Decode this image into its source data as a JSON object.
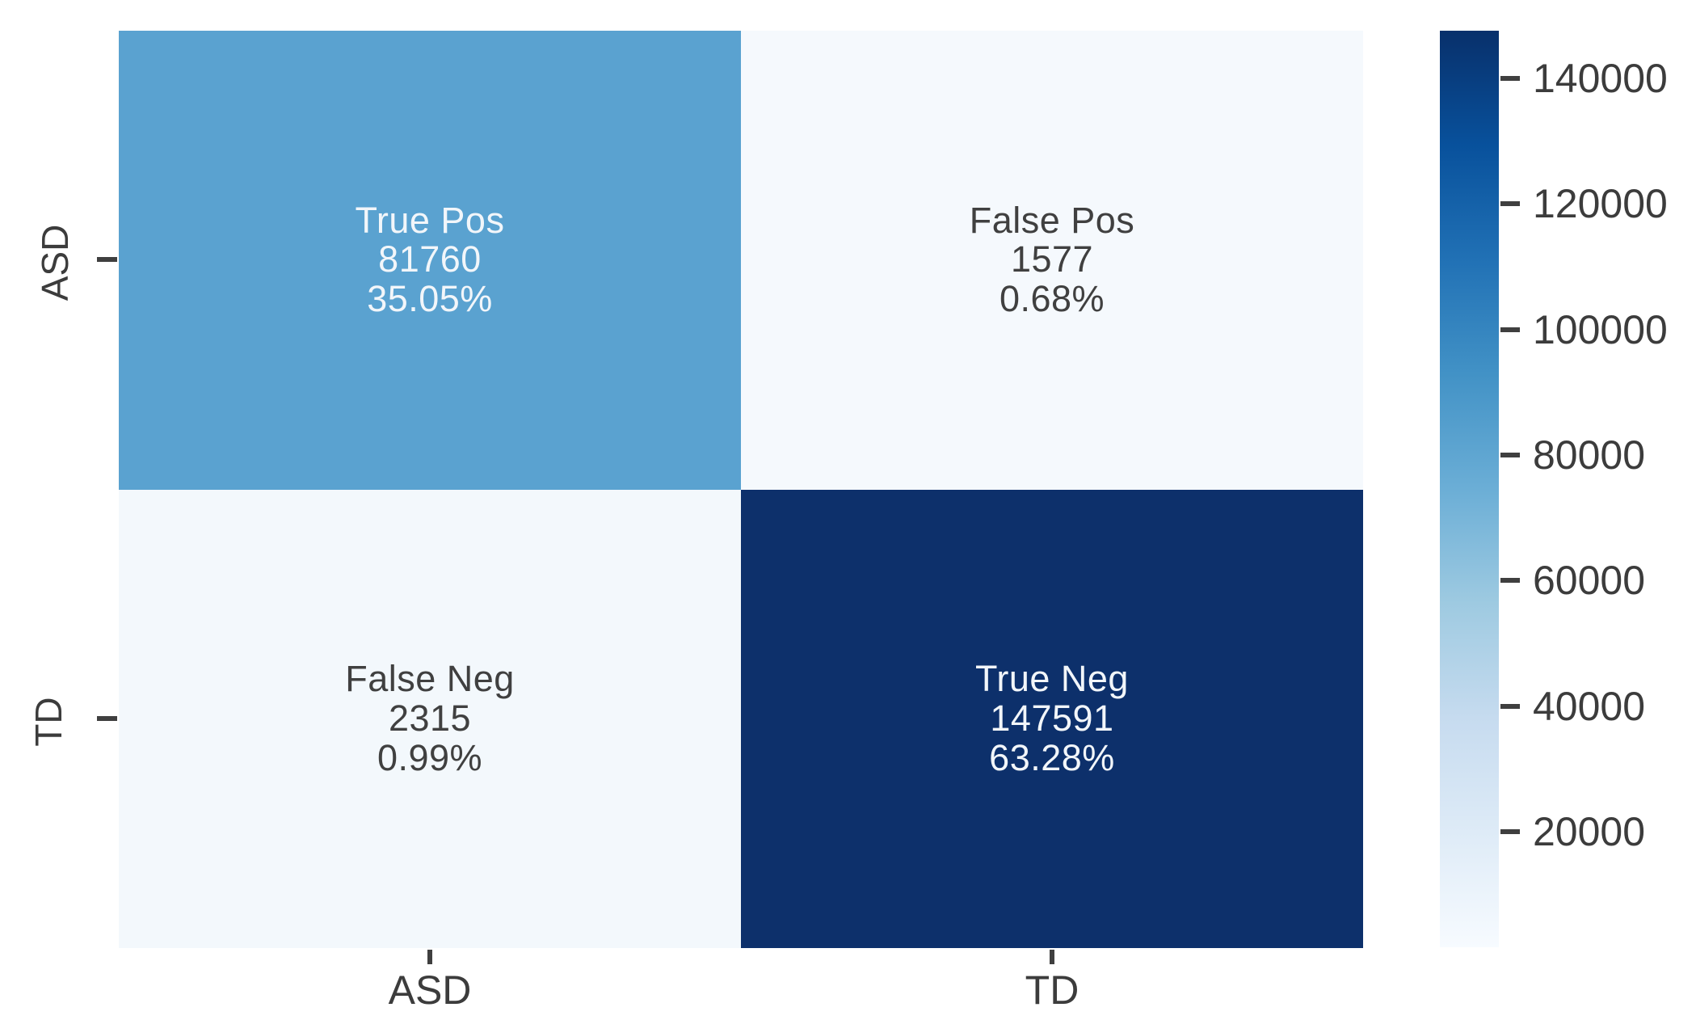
{
  "chart_data": {
    "type": "heatmap",
    "description": "Confusion matrix of ASD vs TD classification",
    "x_categories": [
      "ASD",
      "TD"
    ],
    "y_categories": [
      "ASD",
      "TD"
    ],
    "values_matrix": [
      [
        81760,
        1577
      ],
      [
        2315,
        147591
      ]
    ],
    "cells": [
      {
        "row": "ASD",
        "col": "ASD",
        "label": "True Pos",
        "count": 81760,
        "percent": "35.05%",
        "color": "#5aa2d0",
        "text_color": "#f2f6fa"
      },
      {
        "row": "ASD",
        "col": "TD",
        "label": "False Pos",
        "count": 1577,
        "percent": "0.68%",
        "color": "#f5f9fd",
        "text_color": "#404040"
      },
      {
        "row": "TD",
        "col": "ASD",
        "label": "False Neg",
        "count": 2315,
        "percent": "0.99%",
        "color": "#f3f8fc",
        "text_color": "#404040"
      },
      {
        "row": "TD",
        "col": "TD",
        "label": "True Neg",
        "count": 147591,
        "percent": "63.28%",
        "color": "#0d306b",
        "text_color": "#f2f6fa"
      }
    ],
    "colorbar": {
      "colormap": "Blues",
      "vmin": 1577,
      "vmax": 147591,
      "ticks": [
        20000,
        40000,
        60000,
        80000,
        100000,
        120000,
        140000
      ],
      "gradient_bottom_to_top": [
        "#f7fbff",
        "#deebf7",
        "#c6dbef",
        "#9ecae1",
        "#6baed6",
        "#4292c6",
        "#2171b5",
        "#08519c",
        "#08306b"
      ]
    },
    "axis_ranges": {
      "grid": false,
      "legend": "colorbar-right"
    },
    "title": "",
    "xlabel": "",
    "ylabel": ""
  },
  "colors": {
    "background": "#ffffff",
    "tick_color": "#3f3f3f",
    "tick_label_color": "#3c3c3c"
  }
}
